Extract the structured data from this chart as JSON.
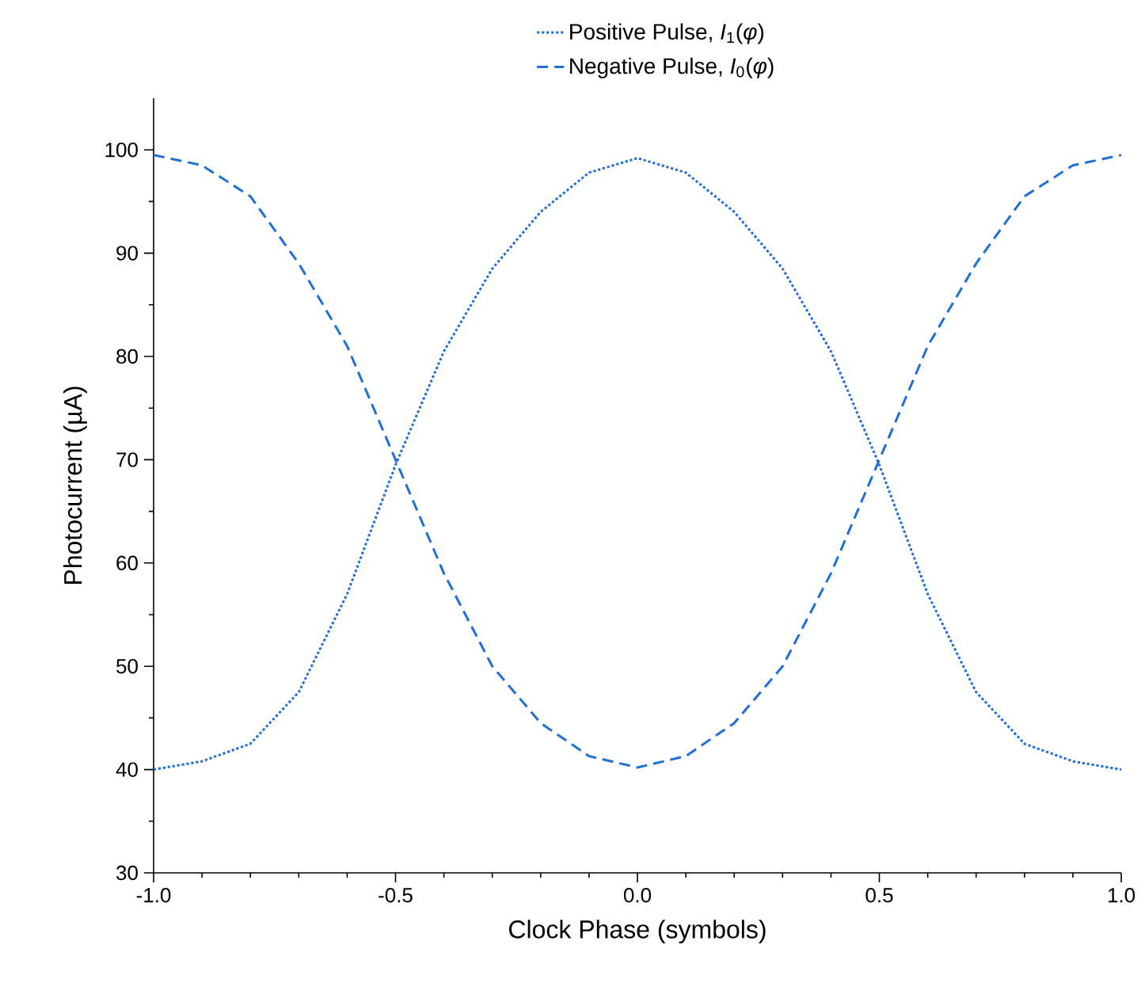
{
  "chart_data": {
    "type": "line",
    "xlabel": "Clock Phase (symbols)",
    "ylabel": "Photocurrent (µA)",
    "xlim": [
      -1,
      1
    ],
    "ylim": [
      30,
      105
    ],
    "xticks": [
      {
        "value": -1,
        "label": "-1.0"
      },
      {
        "value": -0.5,
        "label": "-0.5"
      },
      {
        "value": 0,
        "label": "0.0"
      },
      {
        "value": 0.5,
        "label": "0.5"
      },
      {
        "value": 1,
        "label": "1.0"
      }
    ],
    "yticks": [
      30,
      40,
      50,
      60,
      70,
      80,
      90,
      100
    ],
    "legend": "top",
    "grid": false,
    "marker": "none",
    "x": [
      -1,
      -0.9,
      -0.8,
      -0.7,
      -0.6,
      -0.5,
      -0.4,
      -0.3,
      -0.2,
      -0.1,
      0,
      0.1,
      0.2,
      0.3,
      0.4,
      0.5,
      0.6,
      0.7,
      0.8,
      0.9,
      1
    ],
    "series": [
      {
        "name": "Positive Pulse, *I*$_{1}$(*φ*)",
        "color": "#1f6fdb",
        "line_style": "dotted",
        "values": [
          40,
          40.8,
          42.5,
          47.5,
          57,
          69.5,
          80.5,
          88.5,
          94,
          97.8,
          99.2,
          97.8,
          94,
          88.5,
          80.5,
          69.5,
          57,
          47.5,
          42.5,
          40.8,
          40
        ]
      },
      {
        "name": "Negative Pulse, *I*$_{0}$(*φ*)",
        "color": "#1f6fdb",
        "line_style": "dashed",
        "values": [
          99.5,
          98.5,
          95.5,
          89,
          81,
          70,
          59,
          50,
          44.5,
          41.3,
          40.2,
          41.3,
          44.5,
          50,
          59,
          70,
          81,
          89,
          95.5,
          98.5,
          99.5
        ]
      }
    ]
  }
}
